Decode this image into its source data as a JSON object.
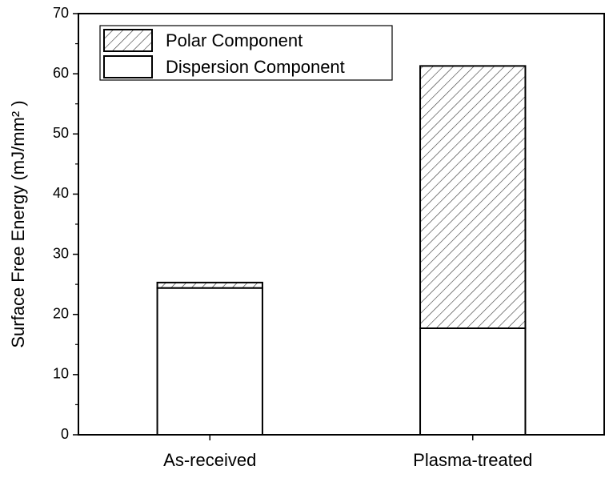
{
  "chart_data": {
    "type": "stacked-bar",
    "y_label": "Surface Free Energy (mJ/mm² )",
    "categories": [
      "As-received",
      "Plasma-treated"
    ],
    "series": [
      {
        "name": "Dispersion Component",
        "color": "#ffffff",
        "pattern": "solid",
        "values": [
          24.4,
          17.7
        ]
      },
      {
        "name": "Polar Component",
        "color": "#ffffff",
        "pattern": "hatch",
        "values": [
          0.9,
          43.6
        ]
      }
    ],
    "ylim": [
      0,
      70
    ],
    "yticks": [
      0,
      10,
      20,
      30,
      40,
      50,
      60,
      70
    ],
    "grid": false,
    "legend": "upper left"
  }
}
